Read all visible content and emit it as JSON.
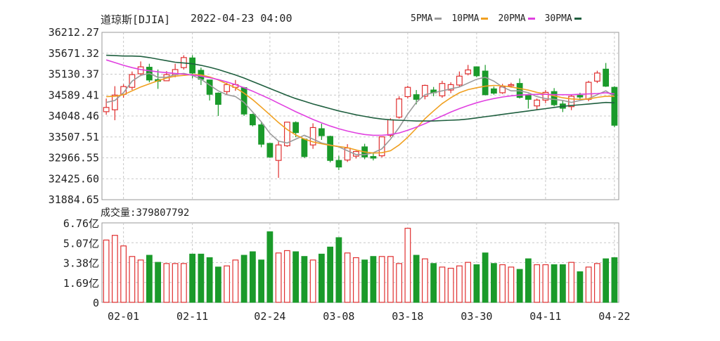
{
  "header": {
    "title": "道琼斯[DJIA]",
    "datetime": "2022-04-23 04:00"
  },
  "legend": [
    {
      "label": "5PMA",
      "color": "#9a9a9a"
    },
    {
      "label": "10PMA",
      "color": "#f0a020"
    },
    {
      "label": "20PMA",
      "color": "#e040e0"
    },
    {
      "label": "30PMA",
      "color": "#1f5f3f"
    }
  ],
  "volume_label": "成交量:",
  "volume_value": "379807792",
  "colors": {
    "up": "#e03030",
    "down": "#1a9a2a",
    "grid": "#c8c8c8"
  },
  "chart_data": [
    {
      "type": "candlestick",
      "title": "道琼斯[DJIA]",
      "y_tick_labels": [
        "36212.27",
        "35671.32",
        "35130.37",
        "34589.41",
        "34048.46",
        "33507.51",
        "32966.55",
        "32425.60",
        "31884.65"
      ],
      "ylim": [
        31884.65,
        36212.27
      ],
      "x_tick_labels": [
        "02-01",
        "02-11",
        "02-24",
        "03-08",
        "03-18",
        "03-30",
        "04-11",
        "04-22"
      ],
      "x_tick_index": [
        2,
        10,
        19,
        27,
        35,
        43,
        51,
        59
      ],
      "grid": true,
      "candles": [
        [
          34160,
          34270,
          34080,
          34500
        ],
        [
          34210,
          34590,
          33940,
          34820
        ],
        [
          34610,
          34810,
          34520,
          34870
        ],
        [
          34790,
          35120,
          34720,
          35200
        ],
        [
          35140,
          35320,
          35080,
          35460
        ],
        [
          35310,
          34980,
          34920,
          35400
        ],
        [
          34990,
          34950,
          34750,
          35250
        ],
        [
          34960,
          35120,
          34950,
          35210
        ],
        [
          35120,
          35250,
          35050,
          35400
        ],
        [
          35300,
          35560,
          35250,
          35620
        ],
        [
          35550,
          35160,
          35020,
          35620
        ],
        [
          35230,
          35000,
          34850,
          35300
        ],
        [
          34980,
          34610,
          34450,
          34980
        ],
        [
          34640,
          34350,
          34050,
          34660
        ],
        [
          34680,
          34860,
          34600,
          34910
        ],
        [
          34790,
          34860,
          34700,
          34980
        ],
        [
          34780,
          34100,
          34050,
          34800
        ],
        [
          34090,
          33820,
          33780,
          34110
        ],
        [
          33820,
          33320,
          33240,
          33880
        ],
        [
          33340,
          32990,
          32960,
          33350
        ],
        [
          32900,
          33300,
          32450,
          33400
        ],
        [
          33280,
          33890,
          33250,
          33900
        ],
        [
          33880,
          33620,
          33500,
          33910
        ],
        [
          33450,
          33000,
          32960,
          33470
        ],
        [
          33300,
          33750,
          33200,
          33860
        ],
        [
          33720,
          33540,
          33430,
          33850
        ],
        [
          33520,
          32900,
          32850,
          33540
        ],
        [
          32900,
          32730,
          32650,
          33020
        ],
        [
          32910,
          33220,
          32860,
          33320
        ],
        [
          33010,
          33130,
          32950,
          33150
        ],
        [
          33250,
          32990,
          32930,
          33330
        ],
        [
          33000,
          32960,
          32900,
          33100
        ],
        [
          33020,
          33510,
          32980,
          33520
        ],
        [
          33550,
          33950,
          33500,
          33990
        ],
        [
          34020,
          34490,
          33980,
          34560
        ],
        [
          34550,
          34790,
          34500,
          34830
        ],
        [
          34600,
          34480,
          34350,
          34720
        ],
        [
          34560,
          34840,
          34480,
          34860
        ],
        [
          34720,
          34650,
          34560,
          34800
        ],
        [
          34570,
          34890,
          34520,
          34960
        ],
        [
          34720,
          34860,
          34640,
          34920
        ],
        [
          34850,
          35080,
          34800,
          35200
        ],
        [
          35140,
          35240,
          35100,
          35370
        ],
        [
          35320,
          35090,
          35050,
          35330
        ],
        [
          35210,
          34600,
          34580,
          35370
        ],
        [
          34750,
          34640,
          34600,
          34810
        ],
        [
          34650,
          34800,
          34620,
          34880
        ],
        [
          34830,
          34860,
          34780,
          34910
        ],
        [
          34890,
          34530,
          34500,
          35020
        ],
        [
          34600,
          34480,
          34240,
          34620
        ],
        [
          34310,
          34460,
          34200,
          34500
        ],
        [
          34460,
          34660,
          34380,
          34720
        ],
        [
          34680,
          34340,
          34300,
          34770
        ],
        [
          34360,
          34250,
          34150,
          34440
        ],
        [
          34290,
          34560,
          34200,
          34600
        ],
        [
          34580,
          34540,
          34460,
          34650
        ],
        [
          34480,
          34920,
          34430,
          34960
        ],
        [
          34950,
          35160,
          34900,
          35220
        ],
        [
          35260,
          34820,
          34800,
          35420
        ],
        [
          34790,
          33810,
          33760,
          34820
        ]
      ],
      "ma_series": [
        {
          "name": "5PMA",
          "color": "#9a9a9a",
          "values": [
            34400,
            34450,
            34650,
            34950,
            35100,
            35150,
            35050,
            35050,
            35120,
            35150,
            35100,
            35000,
            34850,
            34700,
            34600,
            34550,
            34400,
            34150,
            33900,
            33600,
            33400,
            33350,
            33450,
            33550,
            33450,
            33350,
            33300,
            33250,
            33150,
            33050,
            33050,
            33100,
            33200,
            33450,
            33750,
            34100,
            34400,
            34600,
            34650,
            34700,
            34750,
            34800,
            34900,
            35000,
            35050,
            34950,
            34800,
            34700,
            34700,
            34650,
            34550,
            34500,
            34480,
            34450,
            34400,
            34450,
            34500,
            34600,
            34700,
            34550
          ]
        },
        {
          "name": "10PMA",
          "color": "#f0a020",
          "values": [
            34550,
            34560,
            34600,
            34700,
            34800,
            34880,
            34960,
            35030,
            35080,
            35100,
            35120,
            35110,
            35060,
            34980,
            34880,
            34780,
            34640,
            34470,
            34280,
            34080,
            33880,
            33700,
            33560,
            33450,
            33380,
            33330,
            33290,
            33260,
            33230,
            33170,
            33120,
            33090,
            33100,
            33150,
            33300,
            33500,
            33730,
            33980,
            34180,
            34370,
            34520,
            34650,
            34730,
            34780,
            34820,
            34840,
            34830,
            34800,
            34760,
            34720,
            34660,
            34620,
            34570,
            34520,
            34490,
            34480,
            34490,
            34530,
            34560,
            34560
          ]
        },
        {
          "name": "20PMA",
          "color": "#e040e0",
          "values": [
            35500,
            35430,
            35360,
            35300,
            35250,
            35220,
            35190,
            35170,
            35150,
            35130,
            35110,
            35080,
            35040,
            34990,
            34930,
            34860,
            34780,
            34690,
            34590,
            34490,
            34380,
            34270,
            34160,
            34060,
            33960,
            33870,
            33790,
            33720,
            33660,
            33610,
            33570,
            33550,
            33550,
            33570,
            33610,
            33680,
            33760,
            33850,
            33950,
            34050,
            34150,
            34240,
            34320,
            34390,
            34450,
            34500,
            34540,
            34570,
            34590,
            34600,
            34610,
            34610,
            34600,
            34600,
            34600,
            34610,
            34620,
            34630,
            34650,
            34620
          ]
        },
        {
          "name": "30PMA",
          "color": "#1f5f3f",
          "values": [
            35620,
            35610,
            35600,
            35600,
            35590,
            35560,
            35520,
            35480,
            35440,
            35420,
            35400,
            35360,
            35310,
            35250,
            35180,
            35110,
            35030,
            34940,
            34850,
            34760,
            34670,
            34580,
            34500,
            34430,
            34360,
            34300,
            34240,
            34180,
            34130,
            34080,
            34040,
            34000,
            33970,
            33950,
            33940,
            33930,
            33920,
            33920,
            33920,
            33930,
            33940,
            33950,
            33970,
            34000,
            34030,
            34060,
            34090,
            34120,
            34150,
            34180,
            34210,
            34240,
            34270,
            34300,
            34320,
            34340,
            34360,
            34380,
            34400,
            34390
          ]
        }
      ]
    },
    {
      "type": "bar",
      "title": "成交量",
      "y_tick_labels": [
        "6.76亿",
        "5.07亿",
        "3.38亿",
        "1.69亿",
        "0"
      ],
      "ylim": [
        0,
        6.76
      ],
      "unit": "亿",
      "values": [
        5.3,
        5.7,
        4.8,
        3.9,
        3.6,
        4.0,
        3.4,
        3.3,
        3.3,
        3.3,
        4.1,
        4.1,
        3.8,
        3.0,
        3.1,
        3.6,
        4.0,
        4.3,
        3.6,
        6.0,
        4.2,
        4.4,
        4.3,
        3.9,
        3.6,
        4.1,
        4.7,
        5.5,
        4.2,
        3.8,
        3.6,
        3.9,
        3.9,
        3.9,
        3.3,
        6.3,
        4.0,
        3.7,
        3.3,
        3.0,
        2.9,
        3.1,
        3.4,
        3.2,
        4.2,
        3.3,
        3.2,
        3.0,
        2.8,
        3.7,
        3.2,
        3.2,
        3.2,
        3.2,
        3.4,
        2.6,
        3.0,
        3.3,
        3.7,
        3.8
      ]
    }
  ]
}
